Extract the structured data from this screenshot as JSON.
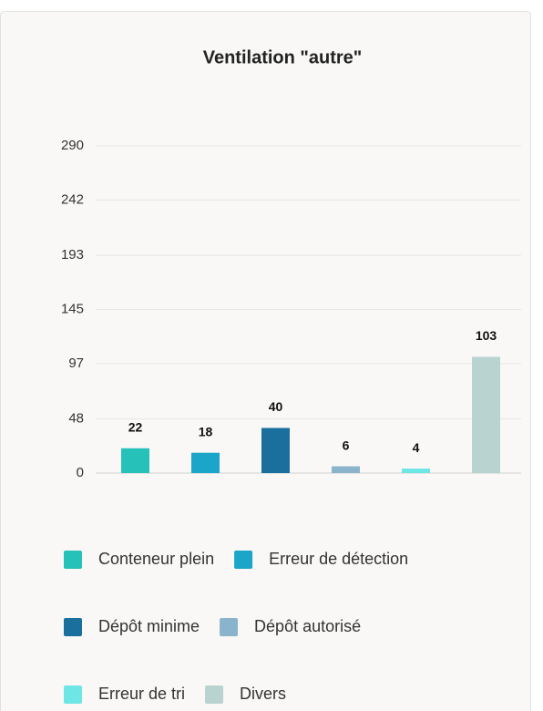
{
  "chart_data": {
    "type": "bar",
    "title": "Ventilation \"autre\"",
    "categories": [
      "Conteneur plein",
      "Erreur de détection",
      "Dépôt minime",
      "Dépôt autorisé",
      "Erreur de tri",
      "Divers"
    ],
    "values": [
      22,
      18,
      40,
      6,
      4,
      103
    ],
    "colors": [
      "#26c1b9",
      "#1aa5c9",
      "#1a6f9c",
      "#8ab4cc",
      "#6ee6e6",
      "#b8d3d0"
    ],
    "ylim": [
      0,
      290
    ],
    "yticks": [
      0,
      48,
      97,
      145,
      193,
      242,
      290
    ],
    "grid": true,
    "legend": "bottom"
  }
}
